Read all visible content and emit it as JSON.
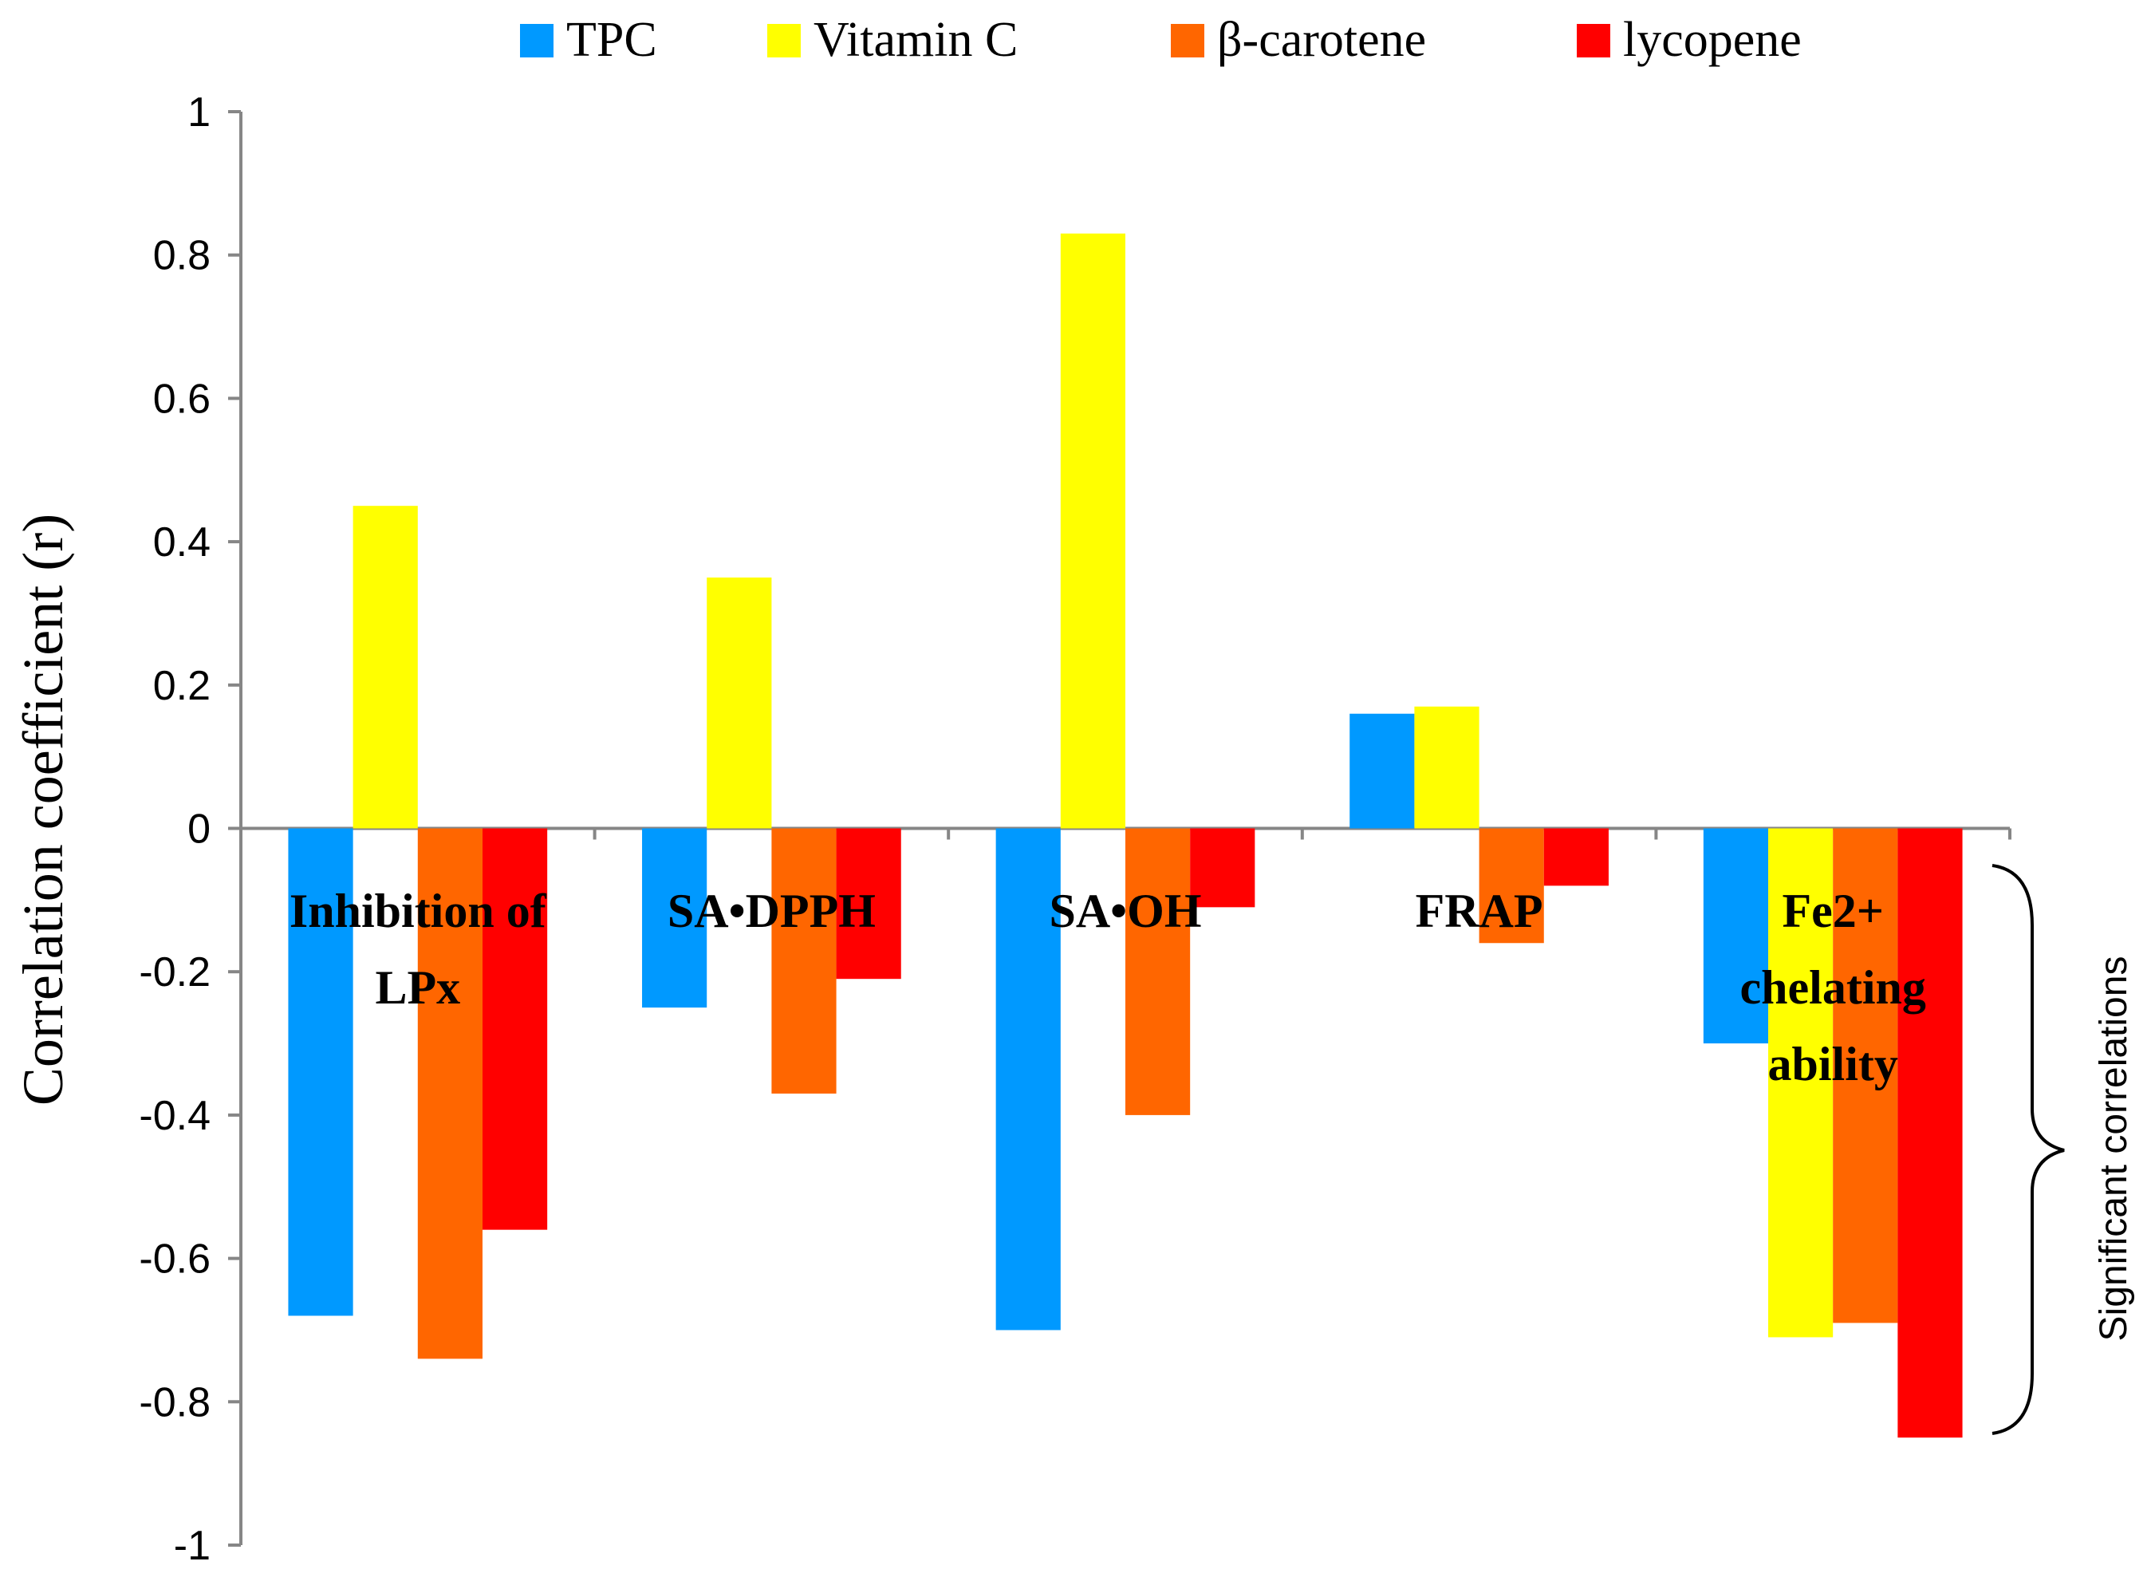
{
  "chart_data": {
    "type": "bar",
    "title": "",
    "xlabel": "",
    "ylabel": "Correlation coefficient (r)",
    "ylim": [
      -1,
      1
    ],
    "yticks": [
      1,
      0.8,
      0.6,
      0.4,
      0.2,
      0,
      -0.2,
      -0.4,
      -0.6,
      -0.8,
      -1
    ],
    "ytick_labels": [
      "1",
      "0.8",
      "0.6",
      "0.4",
      "0.2",
      "0",
      "-0.2",
      "-0.4",
      "-0.6",
      "-0.8",
      "-1"
    ],
    "legend_position": "top",
    "categories": [
      [
        "Inhibition of",
        "LPx"
      ],
      [
        "SA•DPPH"
      ],
      [
        "SA•OH"
      ],
      [
        "FRAP"
      ],
      [
        "Fe2+",
        "chelating",
        "ability"
      ]
    ],
    "series": [
      {
        "name": "TPC",
        "color": "#0099ff",
        "values": [
          -0.68,
          -0.25,
          -0.7,
          0.16,
          -0.3
        ]
      },
      {
        "name": "Vitamin C",
        "color": "#ffff00",
        "values": [
          0.45,
          0.35,
          0.83,
          0.17,
          -0.71
        ]
      },
      {
        "name": "β-carotene",
        "color": "#ff6600",
        "values": [
          -0.74,
          -0.37,
          -0.4,
          -0.16,
          -0.69
        ]
      },
      {
        "name": "lycopene",
        "color": "#ff0000",
        "values": [
          -0.56,
          -0.21,
          -0.11,
          -0.08,
          -0.85
        ]
      }
    ],
    "annotation": "Significant correlations"
  }
}
